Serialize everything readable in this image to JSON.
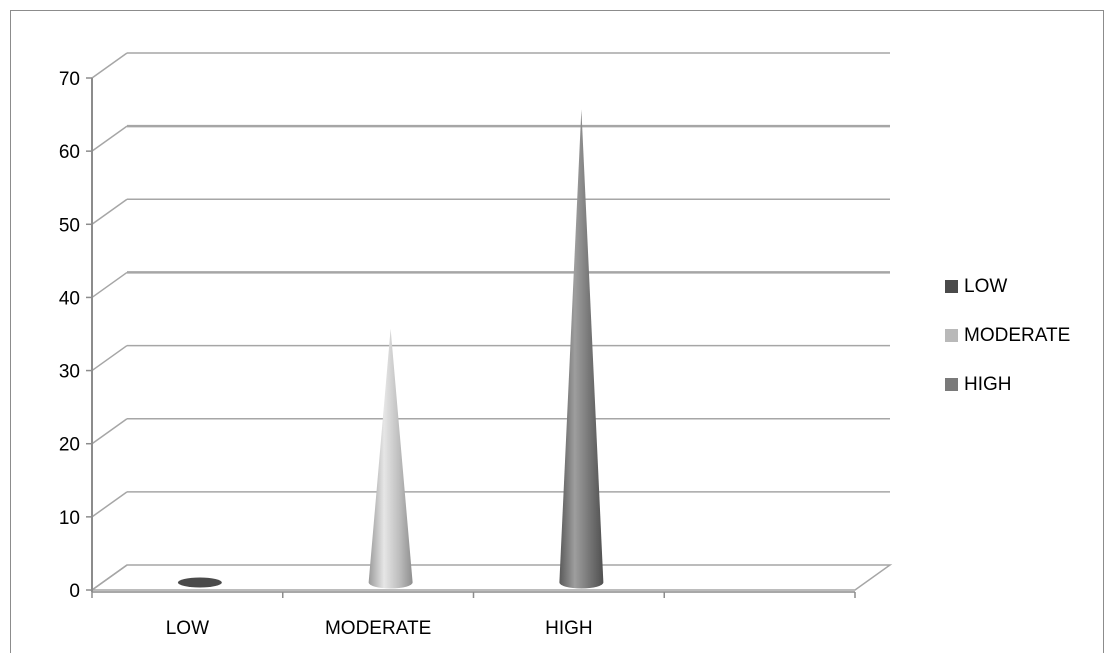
{
  "chart_data": {
    "type": "bar",
    "style": "3d-cone",
    "categories": [
      "LOW",
      "MODERATE",
      "HIGH"
    ],
    "series": [
      {
        "name": "LOW",
        "values": [
          1,
          null,
          null
        ],
        "color": "#4a4a4a"
      },
      {
        "name": "MODERATE",
        "values": [
          null,
          34,
          null
        ],
        "color": "#b9b9b9"
      },
      {
        "name": "HIGH",
        "values": [
          null,
          null,
          64
        ],
        "color": "#7a7a7a"
      }
    ],
    "yticks": [
      0,
      10,
      20,
      30,
      40,
      50,
      60,
      70
    ],
    "ylim": [
      0,
      70
    ],
    "grid": true,
    "legend_position": "right"
  }
}
